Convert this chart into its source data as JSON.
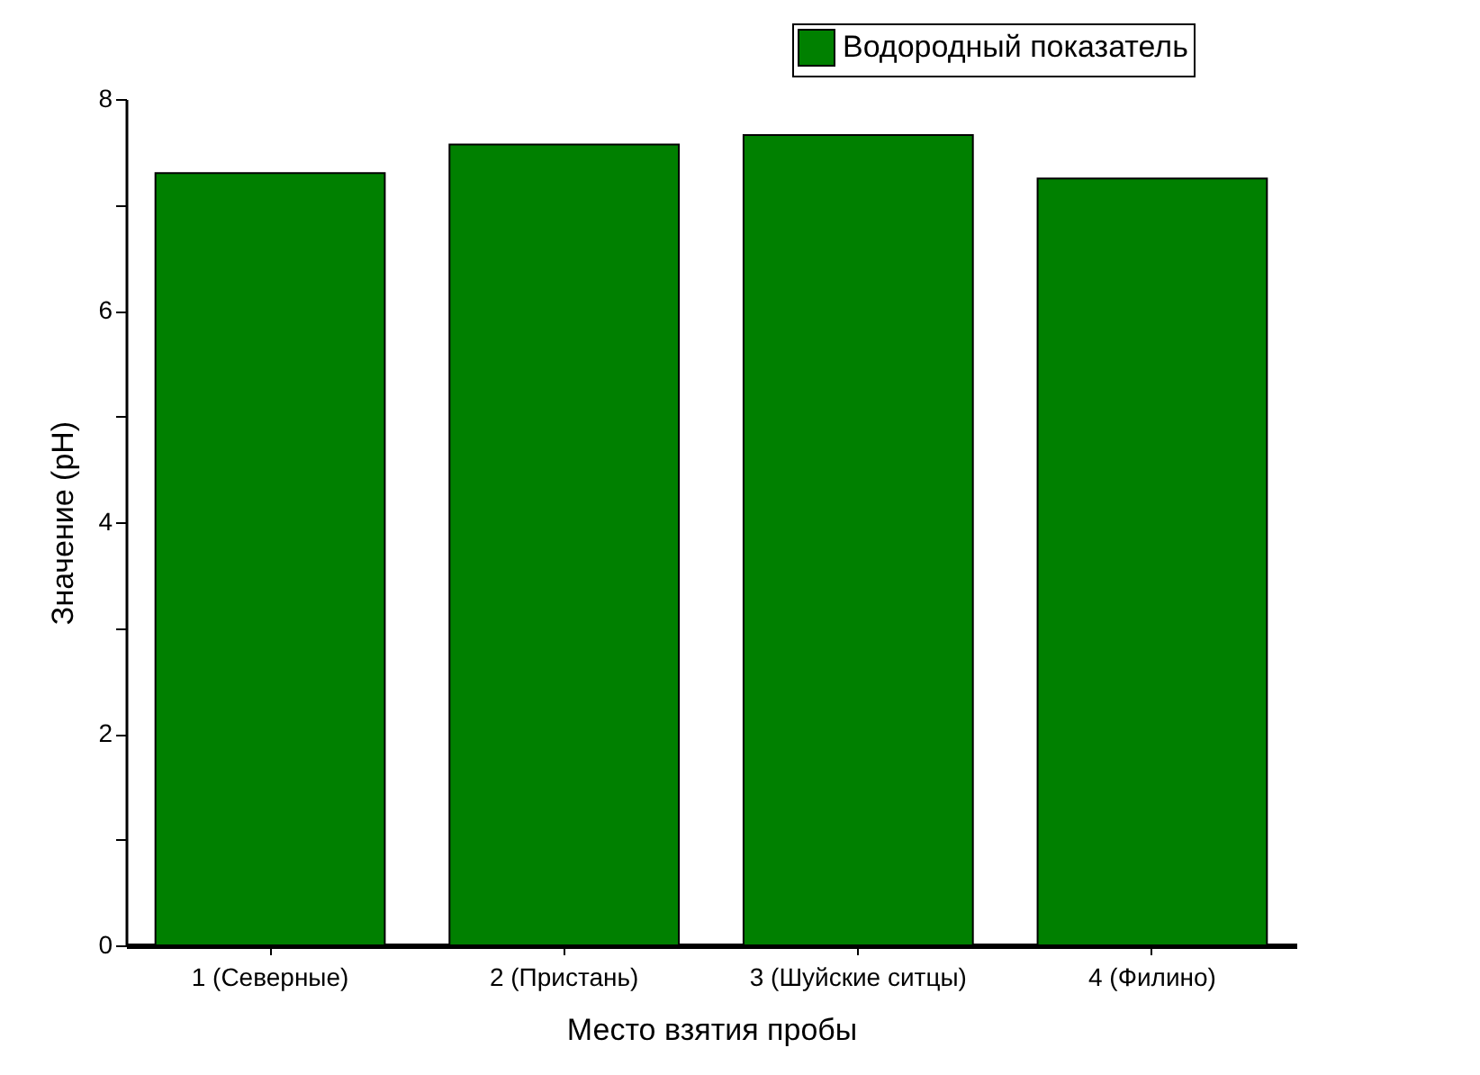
{
  "chart_data": {
    "type": "bar",
    "xlabel": "Место взятия пробы",
    "ylabel": "Значение (pH)",
    "categories": [
      "1 (Северные)",
      "2 (Пристань)",
      "3 (Шуйские ситцы)",
      "4 (Филино)"
    ],
    "series": [
      {
        "name": "Водородный показатель",
        "color": "#008000",
        "values": [
          7.3,
          7.57,
          7.66,
          7.25
        ]
      }
    ],
    "ylim": [
      0,
      8
    ],
    "yticks": [
      0,
      {
        "value": 1,
        "label": null
      },
      2,
      {
        "value": 3,
        "label": null
      },
      4,
      {
        "value": 5,
        "label": null
      },
      6,
      {
        "value": 7,
        "label": null
      },
      8
    ],
    "legend": "top right",
    "grid": false
  }
}
